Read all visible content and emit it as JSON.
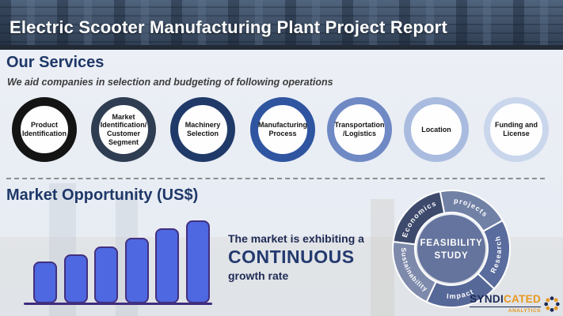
{
  "slide": {
    "title": "Electric Scooter Manufacturing Plant Project Report"
  },
  "services": {
    "heading": "Our Services",
    "subtitle": "We aid companies in selection and budgeting of following operations",
    "items": [
      {
        "label": "Product\nIdentification",
        "ring_color": "#141414"
      },
      {
        "label": "Market\nIdentification/\nCustomer\nSegment",
        "ring_color": "#2f3d52"
      },
      {
        "label": "Machinery\nSelection",
        "ring_color": "#1f3a68"
      },
      {
        "label": "Manufacturing\nProcess",
        "ring_color": "#2f55a0"
      },
      {
        "label": "Transportation\n/Logistics",
        "ring_color": "#6e89c4"
      },
      {
        "label": "Location",
        "ring_color": "#a9bcdf"
      },
      {
        "label": "Funding and\nLicense",
        "ring_color": "#c9d6ec"
      }
    ]
  },
  "market": {
    "heading": "Market Opportunity (US$)",
    "statement_line1": "The market is exhibiting a",
    "statement_emphasis": "CONTINUOUS",
    "statement_line3": "growth rate"
  },
  "chart_data": {
    "type": "bar",
    "title": "Market Opportunity (US$)",
    "categories": [
      "",
      "",
      "",
      "",
      "",
      ""
    ],
    "values": [
      53,
      62,
      72,
      83,
      95,
      105
    ],
    "xlabel": "",
    "ylabel": "",
    "axis_labels_shown": false,
    "bar_fill": "#4d68e0",
    "bar_border": "#43307f",
    "baseline_color": "#3f2d7d"
  },
  "donut": {
    "center_line1": "FEASIBILITY",
    "center_line2": "STUDY",
    "center_color": "#5e6e99",
    "segments": [
      {
        "label": "Economics",
        "color": "#3d4a6c"
      },
      {
        "label": "projects",
        "color": "#7181a6"
      },
      {
        "label": "Research",
        "color": "#5a6c9d"
      },
      {
        "label": "Impact",
        "color": "#566897"
      },
      {
        "label": "Sustainability",
        "color": "#7e8aab"
      }
    ]
  },
  "logo": {
    "word_part1": "SYNDI",
    "word_part2": "CATED",
    "subtext": "ANALYTICS",
    "navy": "#1b2a56",
    "orange": "#e8971f"
  }
}
